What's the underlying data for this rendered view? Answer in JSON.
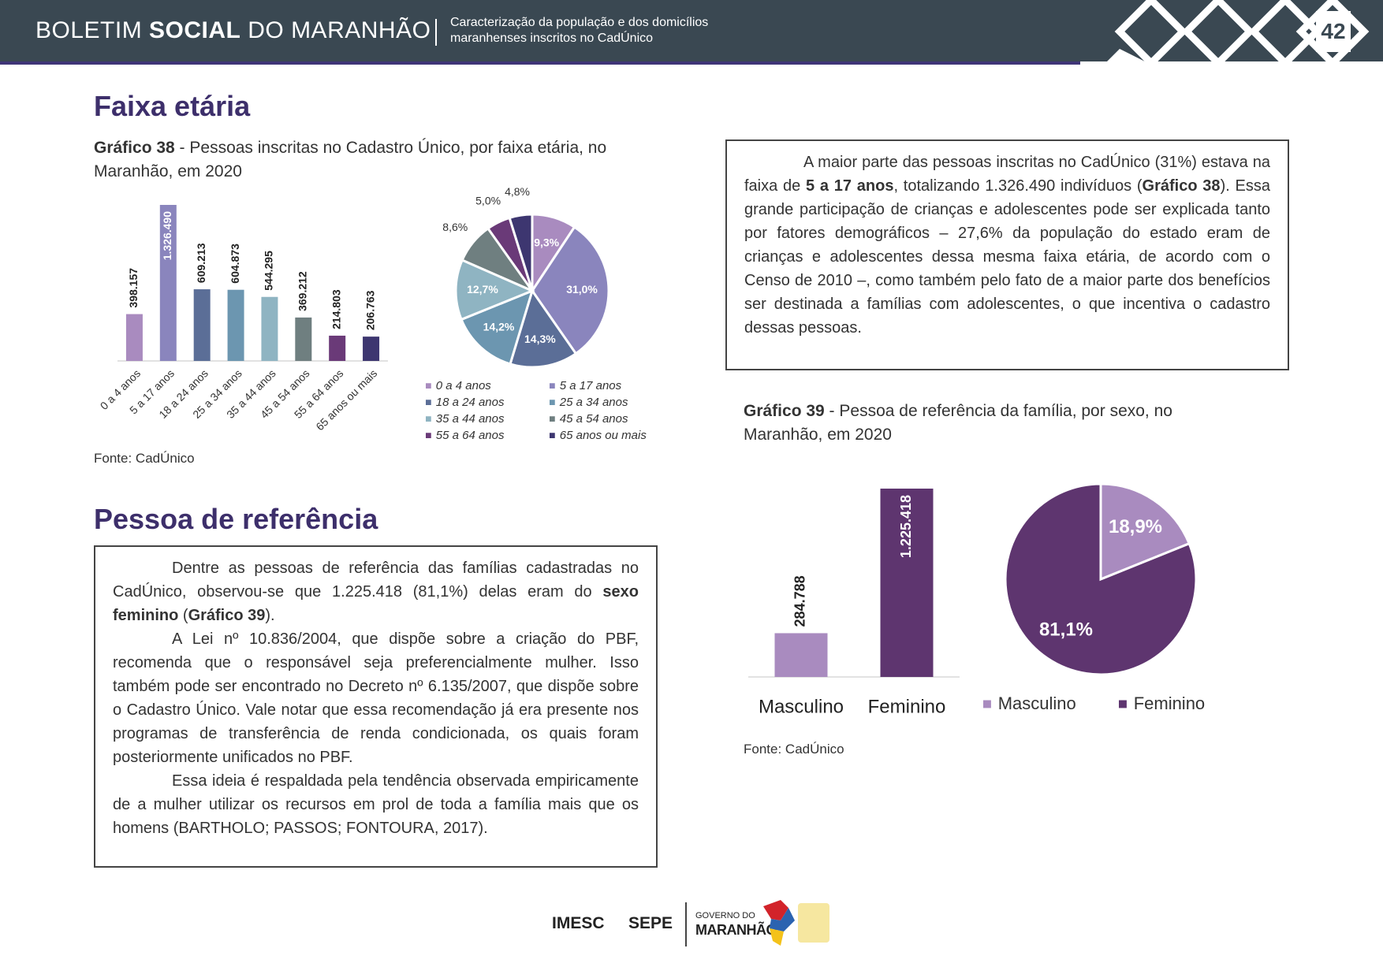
{
  "header": {
    "title": [
      "BOLETIM",
      "SOCIAL",
      "DO MARANHÃO"
    ],
    "subtitle": "Caracterização da população e dos domicílios maranhenses inscritos no CadÚnico",
    "page": "42"
  },
  "sections": [
    {
      "heading": "Faixa etária",
      "caption": [
        {
          "text": "Gráfico 38",
          "bold": true
        },
        {
          "text": " - Pessoas inscritas no Cadastro Único, por faixa etária, no Maranhão, em 2020"
        }
      ],
      "source": "Fonte: CadÚnico",
      "text": [
        [
          {
            "text": "A maior parte das pessoas inscritas no CadÚnico (31%) estava na faixa de "
          },
          {
            "text": "5 a 17 anos",
            "bold": true
          },
          {
            "text": ", totalizando 1.326.490 indivíduos ("
          },
          {
            "text": "Gráfico 38",
            "bold": true
          },
          {
            "text": "). Essa grande participação de crianças e adolescentes pode ser explicada tanto por fatores demográficos – 27,6% da população do estado eram de crianças e adolescentes dessa mesma faixa etária, de acordo com o Censo de 2010 –, como também pelo fato de a maior parte dos benefícios ser destinada a famílias com adolescentes, o que incentiva o cadastro dessas pessoas."
          }
        ]
      ]
    },
    {
      "heading": "Pessoa de referência",
      "caption": [
        {
          "text": "Gráfico 39",
          "bold": true
        },
        {
          "text": " - Pessoa de referência da família, por sexo, no Maranhão, em 2020"
        }
      ],
      "source": "Fonte: CadÚnico",
      "text": [
        [
          {
            "text": "Dentre as pessoas de referência das famílias cadastradas no CadÚnico, observou-se que 1.225.418 (81,1%) delas eram do "
          },
          {
            "text": "sexo feminino",
            "bold": true
          },
          {
            "text": " ("
          },
          {
            "text": "Gráfico 39",
            "bold": true
          },
          {
            "text": ")."
          }
        ],
        [
          {
            "text": "A Lei nº 10.836/2004, que dispõe sobre a criação do PBF, recomenda que o responsável seja preferencialmente mulher. Isso também pode ser encontrado no Decreto nº 6.135/2007, que dispõe sobre o Cadastro Único. Vale notar que essa recomendação já era presente nos programas de transferência de renda condicionada, os quais foram posteriormente unificados no PBF."
          }
        ],
        [
          {
            "text": "Essa ideia é respaldada pela tendência observada empiricamente de a mulher utilizar os recursos em prol de toda a família mais que os homens (BARTHOLO; PASSOS; FONTOURA, 2017)."
          }
        ]
      ]
    }
  ],
  "chart_data": [
    {
      "type": "bar",
      "categories": [
        "0 a 4 anos",
        "5 a 17 anos",
        "18 a 24 anos",
        "25 a 34 anos",
        "35 a 44 anos",
        "45 a 54 anos",
        "55 a 64 anos",
        "65 anos ou mais"
      ],
      "values": [
        398157,
        1326490,
        609213,
        604873,
        544295,
        369212,
        214803,
        206763
      ],
      "value_labels": [
        "398.157",
        "1.326.490",
        "609.213",
        "604.873",
        "544.295",
        "369.212",
        "214.803",
        "206.763"
      ],
      "colors": [
        "#a98bbf",
        "#8a85bd",
        "#5b6e97",
        "#6c96b0",
        "#8fb4c2",
        "#6f7f80",
        "#6a3a78",
        "#3d3670"
      ]
    },
    {
      "type": "pie",
      "categories": [
        "0 a 4 anos",
        "5 a 17 anos",
        "18 a 24 anos",
        "25 a 34 anos",
        "35 a 44 anos",
        "45 a 54 anos",
        "55 a 64 anos",
        "65 anos ou mais"
      ],
      "values": [
        9.3,
        31.0,
        14.3,
        14.2,
        12.7,
        8.6,
        5.0,
        4.8
      ],
      "value_labels": [
        "9,3%",
        "31,0%",
        "14,3%",
        "14,2%",
        "12,7%",
        "8,6%",
        "5,0%",
        "4,8%"
      ],
      "colors": [
        "#a98bbf",
        "#8a85bd",
        "#5b6e97",
        "#6c96b0",
        "#8fb4c2",
        "#6f7f80",
        "#6a3a78",
        "#3d3670"
      ]
    },
    {
      "type": "bar",
      "categories": [
        "Masculino",
        "Feminino"
      ],
      "values": [
        284788,
        1225418
      ],
      "value_labels": [
        "284.788",
        "1.225.418"
      ],
      "colors": [
        "#a98bbf",
        "#5e356f"
      ]
    },
    {
      "type": "pie",
      "categories": [
        "Masculino",
        "Feminino"
      ],
      "values": [
        18.9,
        81.1
      ],
      "value_labels": [
        "18,9%",
        "81,1%"
      ],
      "colors": [
        "#a98bbf",
        "#5e356f"
      ]
    }
  ],
  "footer": {
    "logos": [
      "IMESC",
      "SEPE",
      "GOVERNO DO",
      "MARANHÃO"
    ]
  }
}
